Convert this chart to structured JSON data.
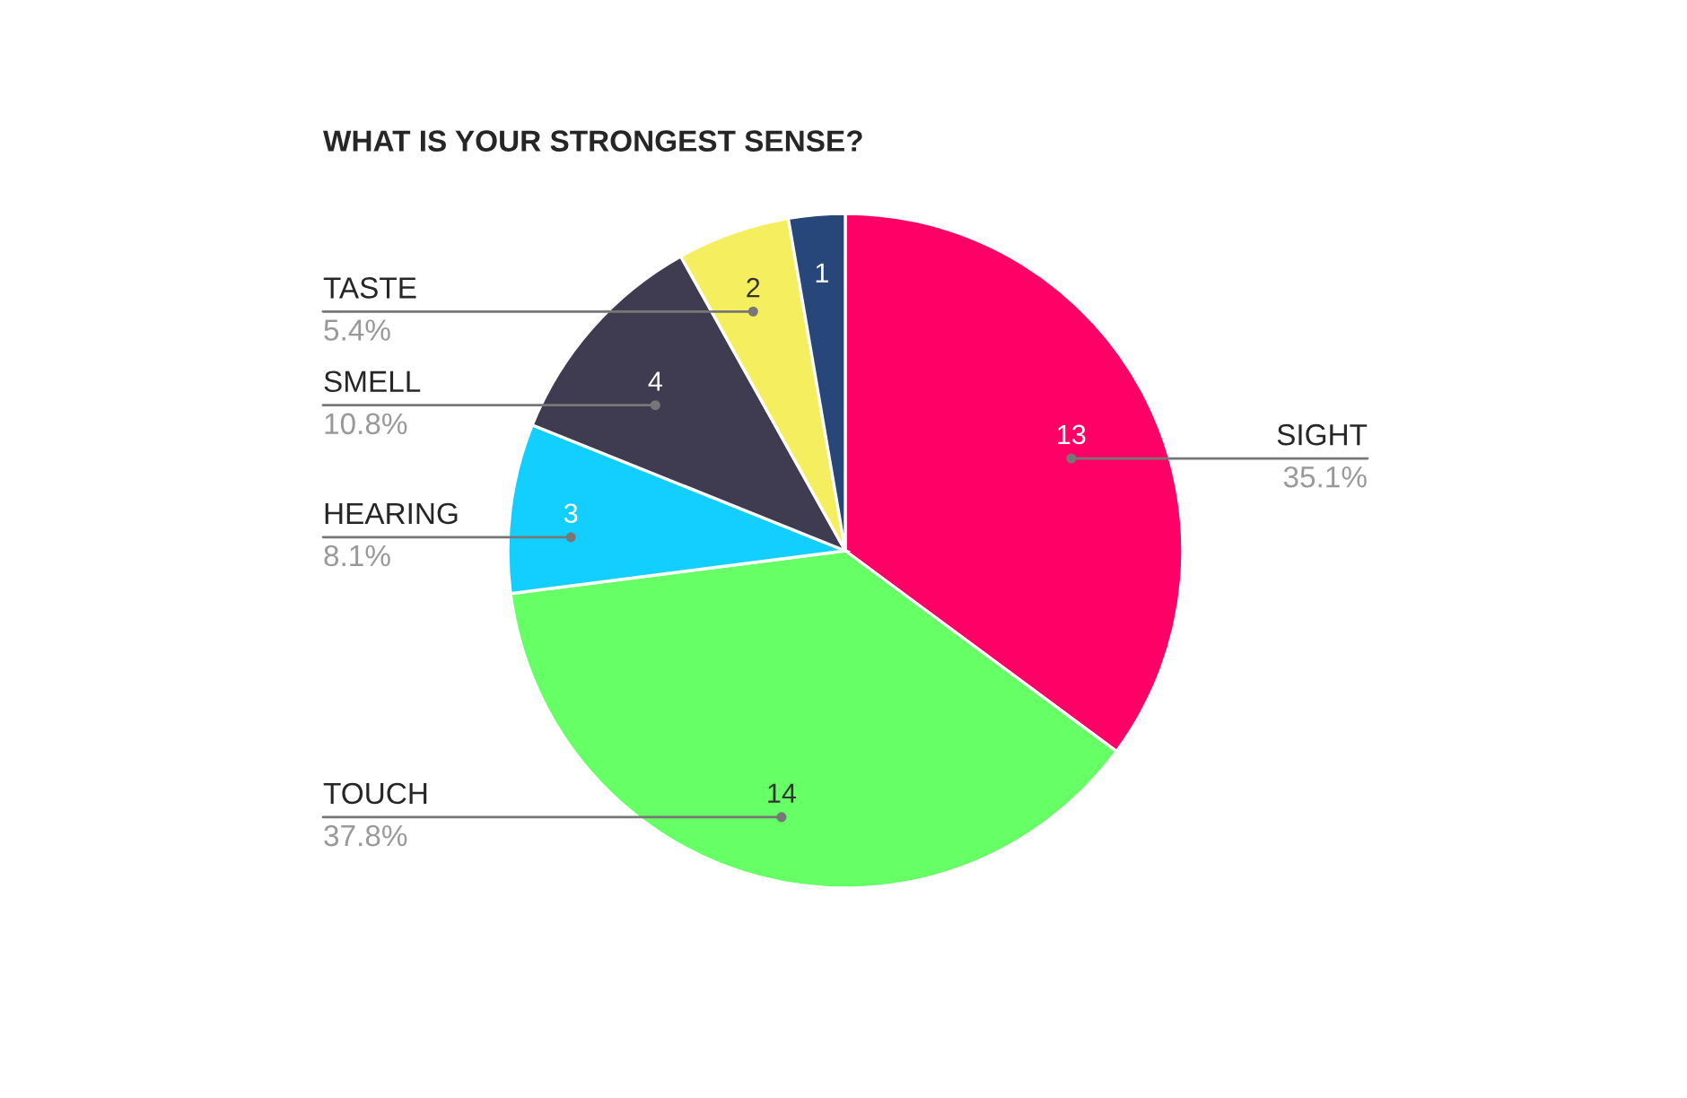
{
  "chart_data": {
    "type": "pie",
    "title": "WHAT IS YOUR STRONGEST SENSE?",
    "categories": [
      "SIGHT",
      "TOUCH",
      "HEARING",
      "SMELL",
      "TASTE",
      null
    ],
    "values": [
      13,
      14,
      3,
      4,
      2,
      1
    ],
    "colors": [
      "#ff0066",
      "#66ff66",
      "#12cfff",
      "#3f3c52",
      "#f5ef5f",
      "#27467a"
    ],
    "data_labels": true,
    "annotations": [
      {
        "text": "35.1%",
        "x": "SIGHT"
      },
      {
        "text": "37.8%",
        "x": "TOUCH"
      },
      {
        "text": "8.1%",
        "x": "HEARING"
      },
      {
        "text": "10.8%",
        "x": "SMELL"
      },
      {
        "text": "5.4%",
        "x": "TASTE"
      }
    ]
  }
}
